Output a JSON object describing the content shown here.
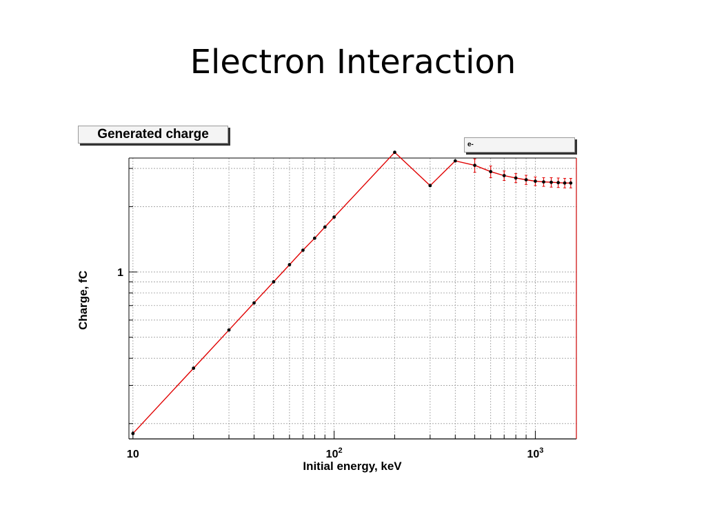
{
  "slide": {
    "title": "Electron Interaction"
  },
  "chart_data": {
    "type": "line",
    "title": "Generated charge",
    "xlabel": "Initial energy, keV",
    "ylabel": "Charge, fC",
    "xscale": "log",
    "yscale": "log",
    "xlim": [
      9.55,
      1600
    ],
    "ylim": [
      0.17,
      3.35
    ],
    "grid": true,
    "legend": {
      "placement": "top-right",
      "entries": [
        "e-"
      ]
    },
    "x_tick_labels": [
      {
        "value": 10,
        "base": "10",
        "exp": ""
      },
      {
        "value": 100,
        "base": "10",
        "exp": "2"
      },
      {
        "value": 1000,
        "base": "10",
        "exp": "3"
      }
    ],
    "y_tick_labels": [
      {
        "value": 1,
        "label": "1"
      }
    ],
    "colors": {
      "line": "#e00000",
      "marker": "#000000",
      "errorbar": "#e00000",
      "frame_right": "#cc0000"
    },
    "series": [
      {
        "name": "e-",
        "points": [
          {
            "x": 10,
            "y": 0.18,
            "err": 0
          },
          {
            "x": 20,
            "y": 0.36,
            "err": 0
          },
          {
            "x": 30,
            "y": 0.54,
            "err": 0
          },
          {
            "x": 40,
            "y": 0.72,
            "err": 0
          },
          {
            "x": 50,
            "y": 0.9,
            "err": 0
          },
          {
            "x": 60,
            "y": 1.08,
            "err": 0
          },
          {
            "x": 70,
            "y": 1.26,
            "err": 0
          },
          {
            "x": 80,
            "y": 1.43,
            "err": 0
          },
          {
            "x": 90,
            "y": 1.61,
            "err": 0
          },
          {
            "x": 100,
            "y": 1.79,
            "err": 0
          },
          {
            "x": 200,
            "y": 3.56,
            "err": 0
          },
          {
            "x": 300,
            "y": 2.5,
            "err": 0
          },
          {
            "x": 400,
            "y": 3.25,
            "err": 0
          },
          {
            "x": 500,
            "y": 3.1,
            "err": 0.22
          },
          {
            "x": 600,
            "y": 2.9,
            "err": 0.18
          },
          {
            "x": 700,
            "y": 2.78,
            "err": 0.14
          },
          {
            "x": 800,
            "y": 2.71,
            "err": 0.13
          },
          {
            "x": 900,
            "y": 2.66,
            "err": 0.13
          },
          {
            "x": 1000,
            "y": 2.62,
            "err": 0.12
          },
          {
            "x": 1100,
            "y": 2.6,
            "err": 0.12
          },
          {
            "x": 1200,
            "y": 2.59,
            "err": 0.13
          },
          {
            "x": 1300,
            "y": 2.58,
            "err": 0.13
          },
          {
            "x": 1400,
            "y": 2.57,
            "err": 0.13
          },
          {
            "x": 1500,
            "y": 2.57,
            "err": 0.13
          }
        ]
      }
    ]
  }
}
